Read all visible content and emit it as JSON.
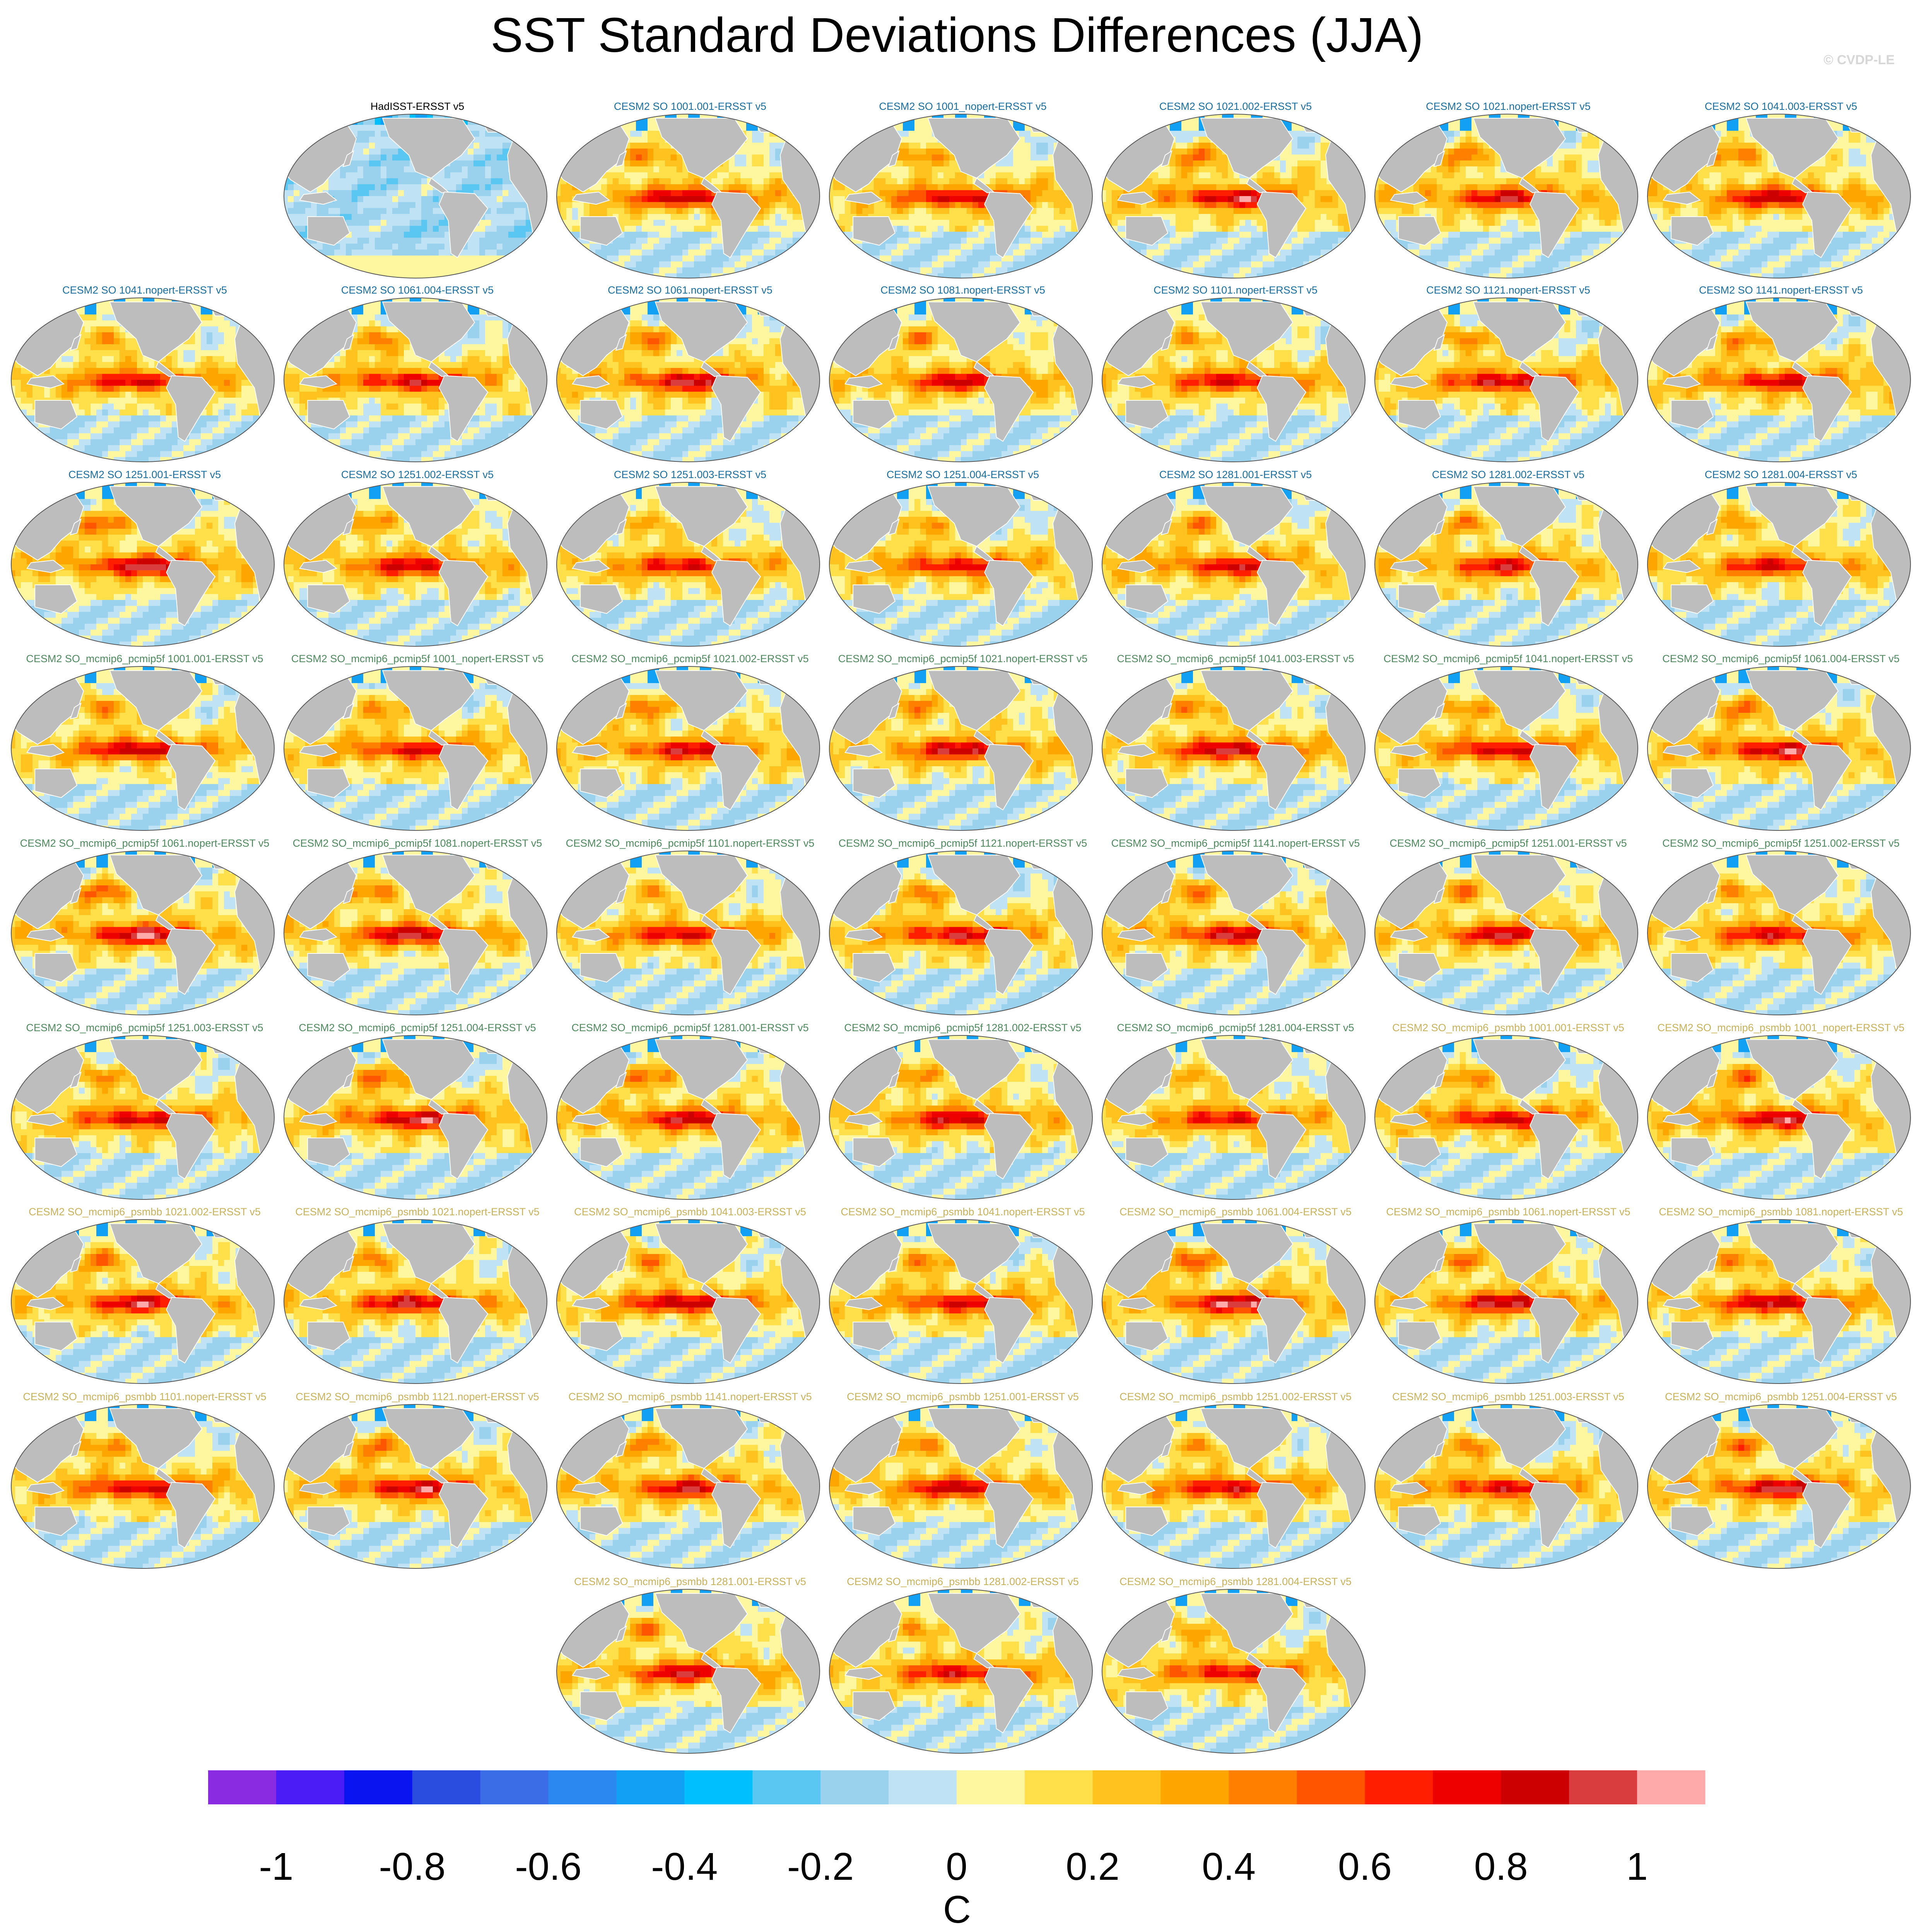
{
  "chart_data": {
    "type": "heatmap",
    "title": "SST Standard Deviations Differences (JJA)",
    "credit": "© CVDP-LE",
    "units_label": "C",
    "colorbar": {
      "ticks": [
        "-1",
        "-0.8",
        "-0.6",
        "-0.4",
        "-0.2",
        "0",
        "0.2",
        "0.4",
        "0.6",
        "0.8",
        "1"
      ],
      "tick_values": [
        -1,
        -0.8,
        -0.6,
        -0.4,
        -0.2,
        0,
        0.2,
        0.4,
        0.6,
        0.8,
        1
      ],
      "levels": [
        -1.1,
        -1.0,
        -0.9,
        -0.8,
        -0.7,
        -0.6,
        -0.5,
        -0.4,
        -0.3,
        -0.2,
        -0.1,
        0.0,
        0.1,
        0.2,
        0.3,
        0.4,
        0.5,
        0.6,
        0.7,
        0.8,
        0.9,
        1.0,
        1.1
      ],
      "colors": [
        "#8a2be2",
        "#4b1cf5",
        "#0a14f0",
        "#2a4de0",
        "#3a6de6",
        "#2b88f0",
        "#12a0f5",
        "#00bfff",
        "#5ac6f2",
        "#9ad2ee",
        "#bfe3f5",
        "#fff7a0",
        "#ffe04a",
        "#ffc21e",
        "#ffa500",
        "#ff8000",
        "#ff5500",
        "#ff1e00",
        "#ee0000",
        "#cc0000",
        "#d93d3d",
        "#ffaaaa"
      ]
    },
    "land_color": "#bdbdbd",
    "panels": [
      {
        "title": "HadISST-ERSST v5",
        "color": "#000000",
        "intensity": 0.0
      },
      {
        "title": "CESM2 SO 1001.001-ERSST v5",
        "color": "#1a6fa0",
        "intensity": 0.82
      },
      {
        "title": "CESM2 SO 1001_nopert-ERSST v5",
        "color": "#1a6fa0",
        "intensity": 0.78
      },
      {
        "title": "CESM2 SO 1021.002-ERSST v5",
        "color": "#1a6fa0",
        "intensity": 0.85
      },
      {
        "title": "CESM2 SO 1021.nopert-ERSST v5",
        "color": "#1a6fa0",
        "intensity": 0.75
      },
      {
        "title": "CESM2 SO 1041.003-ERSST v5",
        "color": "#1a6fa0",
        "intensity": 0.8
      },
      {
        "title": "CESM2 SO 1041.nopert-ERSST v5",
        "color": "#1a6fa0",
        "intensity": 0.76
      },
      {
        "title": "CESM2 SO 1061.004-ERSST v5",
        "color": "#1a6fa0",
        "intensity": 0.8
      },
      {
        "title": "CESM2 SO 1061.nopert-ERSST v5",
        "color": "#1a6fa0",
        "intensity": 0.83
      },
      {
        "title": "CESM2 SO 1081.nopert-ERSST v5",
        "color": "#1a6fa0",
        "intensity": 0.72
      },
      {
        "title": "CESM2 SO 1101.nopert-ERSST v5",
        "color": "#1a6fa0",
        "intensity": 0.7
      },
      {
        "title": "CESM2 SO 1121.nopert-ERSST v5",
        "color": "#1a6fa0",
        "intensity": 0.84
      },
      {
        "title": "CESM2 SO 1141.nopert-ERSST v5",
        "color": "#1a6fa0",
        "intensity": 0.74
      },
      {
        "title": "CESM2 SO 1251.001-ERSST v5",
        "color": "#1a6fa0",
        "intensity": 0.86
      },
      {
        "title": "CESM2 SO 1251.002-ERSST v5",
        "color": "#1a6fa0",
        "intensity": 0.72
      },
      {
        "title": "CESM2 SO 1251.003-ERSST v5",
        "color": "#1a6fa0",
        "intensity": 0.68
      },
      {
        "title": "CESM2 SO 1251.004-ERSST v5",
        "color": "#1a6fa0",
        "intensity": 0.7
      },
      {
        "title": "CESM2 SO 1281.001-ERSST v5",
        "color": "#1a6fa0",
        "intensity": 0.74
      },
      {
        "title": "CESM2 SO 1281.002-ERSST v5",
        "color": "#1a6fa0",
        "intensity": 0.7
      },
      {
        "title": "CESM2 SO 1281.004-ERSST v5",
        "color": "#1a6fa0",
        "intensity": 0.68
      },
      {
        "title": "CESM2 SO_mcmip6_pcmip5f 1001.001-ERSST v5",
        "color": "#4e8a5e",
        "intensity": 0.86
      },
      {
        "title": "CESM2 SO_mcmip6_pcmip5f 1001_nopert-ERSST v5",
        "color": "#4e8a5e",
        "intensity": 0.7
      },
      {
        "title": "CESM2 SO_mcmip6_pcmip5f 1021.002-ERSST v5",
        "color": "#4e8a5e",
        "intensity": 0.76
      },
      {
        "title": "CESM2 SO_mcmip6_pcmip5f 1021.nopert-ERSST v5",
        "color": "#4e8a5e",
        "intensity": 0.78
      },
      {
        "title": "CESM2 SO_mcmip6_pcmip5f 1041.003-ERSST v5",
        "color": "#4e8a5e",
        "intensity": 0.88
      },
      {
        "title": "CESM2 SO_mcmip6_pcmip5f 1041.nopert-ERSST v5",
        "color": "#4e8a5e",
        "intensity": 0.8
      },
      {
        "title": "CESM2 SO_mcmip6_pcmip5f 1061.004-ERSST v5",
        "color": "#4e8a5e",
        "intensity": 0.86
      },
      {
        "title": "CESM2 SO_mcmip6_pcmip5f 1061.nopert-ERSST v5",
        "color": "#4e8a5e",
        "intensity": 0.88
      },
      {
        "title": "CESM2 SO_mcmip6_pcmip5f 1081.nopert-ERSST v5",
        "color": "#4e8a5e",
        "intensity": 0.84
      },
      {
        "title": "CESM2 SO_mcmip6_pcmip5f 1101.nopert-ERSST v5",
        "color": "#4e8a5e",
        "intensity": 0.74
      },
      {
        "title": "CESM2 SO_mcmip6_pcmip5f 1121.nopert-ERSST v5",
        "color": "#4e8a5e",
        "intensity": 0.82
      },
      {
        "title": "CESM2 SO_mcmip6_pcmip5f 1141.nopert-ERSST v5",
        "color": "#4e8a5e",
        "intensity": 0.8
      },
      {
        "title": "CESM2 SO_mcmip6_pcmip5f 1251.001-ERSST v5",
        "color": "#4e8a5e",
        "intensity": 0.78
      },
      {
        "title": "CESM2 SO_mcmip6_pcmip5f 1251.002-ERSST v5",
        "color": "#4e8a5e",
        "intensity": 0.74
      },
      {
        "title": "CESM2 SO_mcmip6_pcmip5f 1251.003-ERSST v5",
        "color": "#4e8a5e",
        "intensity": 0.8
      },
      {
        "title": "CESM2 SO_mcmip6_pcmip5f 1251.004-ERSST v5",
        "color": "#4e8a5e",
        "intensity": 0.9
      },
      {
        "title": "CESM2 SO_mcmip6_pcmip5f 1281.001-ERSST v5",
        "color": "#4e8a5e",
        "intensity": 0.78
      },
      {
        "title": "CESM2 SO_mcmip6_pcmip5f 1281.002-ERSST v5",
        "color": "#4e8a5e",
        "intensity": 0.76
      },
      {
        "title": "CESM2 SO_mcmip6_pcmip5f 1281.004-ERSST v5",
        "color": "#4e8a5e",
        "intensity": 0.7
      },
      {
        "title": "CESM2 SO_mcmip6_psmbb 1001.001-ERSST v5",
        "color": "#c8b25a",
        "intensity": 0.8
      },
      {
        "title": "CESM2 SO_mcmip6_psmbb 1001_nopert-ERSST v5",
        "color": "#c8b25a",
        "intensity": 0.84
      },
      {
        "title": "CESM2 SO_mcmip6_psmbb 1021.002-ERSST v5",
        "color": "#c8b25a",
        "intensity": 0.8
      },
      {
        "title": "CESM2 SO_mcmip6_psmbb 1021.nopert-ERSST v5",
        "color": "#c8b25a",
        "intensity": 0.82
      },
      {
        "title": "CESM2 SO_mcmip6_psmbb 1041.003-ERSST v5",
        "color": "#c8b25a",
        "intensity": 0.88
      },
      {
        "title": "CESM2 SO_mcmip6_psmbb 1041.nopert-ERSST v5",
        "color": "#c8b25a",
        "intensity": 0.76
      },
      {
        "title": "CESM2 SO_mcmip6_psmbb 1061.004-ERSST v5",
        "color": "#c8b25a",
        "intensity": 0.9
      },
      {
        "title": "CESM2 SO_mcmip6_psmbb 1061.nopert-ERSST v5",
        "color": "#c8b25a",
        "intensity": 0.84
      },
      {
        "title": "CESM2 SO_mcmip6_psmbb 1081.nopert-ERSST v5",
        "color": "#c8b25a",
        "intensity": 0.86
      },
      {
        "title": "CESM2 SO_mcmip6_psmbb 1101.nopert-ERSST v5",
        "color": "#c8b25a",
        "intensity": 0.8
      },
      {
        "title": "CESM2 SO_mcmip6_psmbb 1121.nopert-ERSST v5",
        "color": "#c8b25a",
        "intensity": 0.84
      },
      {
        "title": "CESM2 SO_mcmip6_psmbb 1141.nopert-ERSST v5",
        "color": "#c8b25a",
        "intensity": 0.74
      },
      {
        "title": "CESM2 SO_mcmip6_psmbb 1251.001-ERSST v5",
        "color": "#c8b25a",
        "intensity": 0.8
      },
      {
        "title": "CESM2 SO_mcmip6_psmbb 1251.002-ERSST v5",
        "color": "#c8b25a",
        "intensity": 0.78
      },
      {
        "title": "CESM2 SO_mcmip6_psmbb 1251.003-ERSST v5",
        "color": "#c8b25a",
        "intensity": 0.76
      },
      {
        "title": "CESM2 SO_mcmip6_psmbb 1251.004-ERSST v5",
        "color": "#c8b25a",
        "intensity": 0.84
      },
      {
        "title": "CESM2 SO_mcmip6_psmbb 1281.001-ERSST v5",
        "color": "#c8b25a",
        "intensity": 0.76
      },
      {
        "title": "CESM2 SO_mcmip6_psmbb 1281.002-ERSST v5",
        "color": "#c8b25a",
        "intensity": 0.72
      },
      {
        "title": "CESM2 SO_mcmip6_psmbb 1281.004-ERSST v5",
        "color": "#c8b25a",
        "intensity": 0.7
      }
    ]
  }
}
